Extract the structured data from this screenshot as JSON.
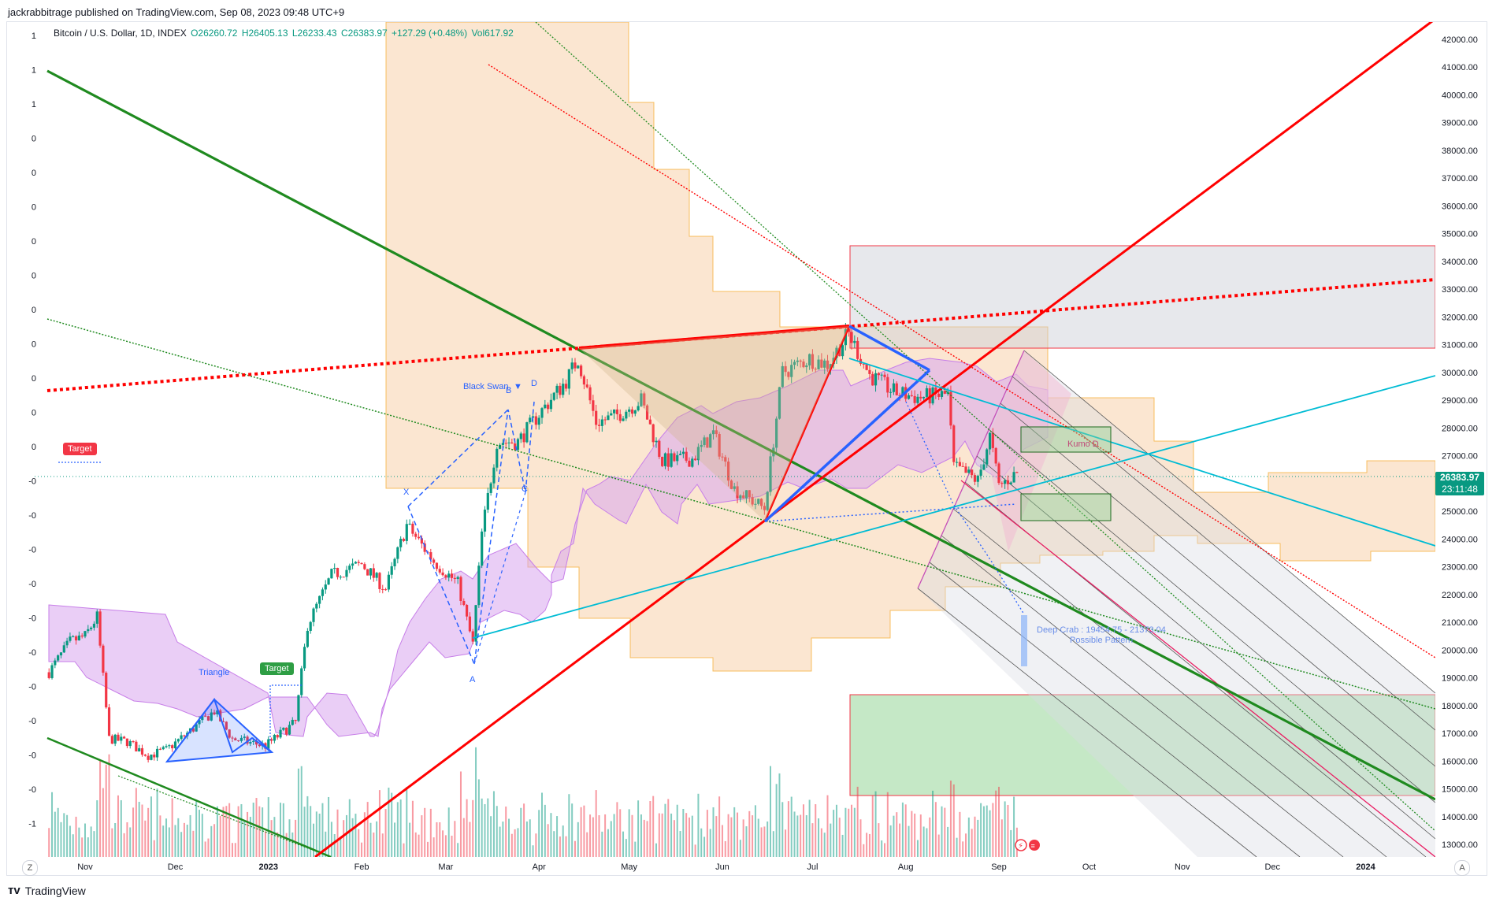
{
  "header": {
    "published": "jackrabbitrage published on TradingView.com, Sep 08, 2023 09:48 UTC+9"
  },
  "legend": {
    "symbol": "Bitcoin / U.S. Dollar, 1D, INDEX",
    "open": "O26260.72",
    "high": "H26405.13",
    "low": "L26233.43",
    "close": "C26383.97",
    "change": "+127.29 (+0.48%)",
    "volume": "Vol617.92"
  },
  "price_tag": {
    "price": "26383.97",
    "countdown": "23:11:48"
  },
  "footer": {
    "brand": "TradingView"
  },
  "buttons": {
    "z": "Z",
    "a": "A"
  },
  "annotations": {
    "target_left": "Target",
    "target_bottom": "Target",
    "triangle": "Triangle",
    "black_swan": "Black Swan",
    "deep_crab": "Deep Crab : 19454.75 - 21373.04",
    "possible_pattern": "Possible Pattern",
    "kumo": "Kumo D",
    "pt_x": "X",
    "pt_a": "A",
    "pt_b": "B",
    "pt_c": "C",
    "pt_d": "D"
  },
  "left_scale": [
    "1",
    "1",
    "1",
    "0",
    "0",
    "0",
    "0",
    "0",
    "0",
    "0",
    "0",
    "0",
    "0",
    "-0",
    "-0",
    "-0",
    "-0",
    "-0",
    "-0",
    "-0",
    "-0",
    "-0",
    "-0",
    "-1"
  ],
  "colors": {
    "up": "#089981",
    "down": "#f23645",
    "cloud_orange": "#f7c89a",
    "cloud_purple": "#d9a6ee",
    "red_line": "#ff0000",
    "green_line": "#1f8a1f",
    "blue_line": "#2962ff",
    "cyan_line": "#00bcd4"
  },
  "chart_data": {
    "type": "candlestick",
    "title": "Bitcoin / U.S. Dollar, 1D, INDEX",
    "x_ticks": [
      "Nov",
      "Dec",
      "2023",
      "Feb",
      "Mar",
      "Apr",
      "May",
      "Jun",
      "Jul",
      "Aug",
      "Sep",
      "Oct",
      "Nov",
      "Dec",
      "2024"
    ],
    "y_ticks": [
      42000,
      41000,
      40000,
      39000,
      38000,
      37000,
      36000,
      35000,
      34000,
      33000,
      32000,
      31000,
      30000,
      29000,
      28000,
      27000,
      26000,
      25000,
      24000,
      23000,
      22000,
      21000,
      20000,
      19000,
      18000,
      17000,
      16000,
      15000,
      14000,
      13000
    ],
    "ylim": [
      12600,
      42800
    ],
    "last_price": 26383.97,
    "approx_closes": [
      [
        "2022-10-20",
        19200
      ],
      [
        "2022-10-27",
        20300
      ],
      [
        "2022-11-01",
        20500
      ],
      [
        "2022-11-05",
        21200
      ],
      [
        "2022-11-09",
        16800
      ],
      [
        "2022-11-15",
        16700
      ],
      [
        "2022-11-22",
        16200
      ],
      [
        "2022-11-28",
        16400
      ],
      [
        "2022-12-05",
        17000
      ],
      [
        "2022-12-14",
        17800
      ],
      [
        "2022-12-20",
        16800
      ],
      [
        "2022-12-31",
        16550
      ],
      [
        "2023-01-10",
        17400
      ],
      [
        "2023-01-14",
        20900
      ],
      [
        "2023-01-22",
        22700
      ],
      [
        "2023-02-01",
        23100
      ],
      [
        "2023-02-09",
        22200
      ],
      [
        "2023-02-16",
        24500
      ],
      [
        "2023-02-25",
        23200
      ],
      [
        "2023-03-05",
        22400
      ],
      [
        "2023-03-10",
        20200
      ],
      [
        "2023-03-13",
        24200
      ],
      [
        "2023-03-18",
        27500
      ],
      [
        "2023-03-25",
        27500
      ],
      [
        "2023-04-01",
        28500
      ],
      [
        "2023-04-10",
        29700
      ],
      [
        "2023-04-14",
        30500
      ],
      [
        "2023-04-20",
        28200
      ],
      [
        "2023-04-26",
        28400
      ],
      [
        "2023-05-05",
        29000
      ],
      [
        "2023-05-12",
        26800
      ],
      [
        "2023-05-22",
        26900
      ],
      [
        "2023-05-29",
        27800
      ],
      [
        "2023-06-05",
        25800
      ],
      [
        "2023-06-15",
        25100
      ],
      [
        "2023-06-21",
        30000
      ],
      [
        "2023-06-30",
        30500
      ],
      [
        "2023-07-06",
        30300
      ],
      [
        "2023-07-13",
        31400
      ],
      [
        "2023-07-20",
        29900
      ],
      [
        "2023-07-28",
        29300
      ],
      [
        "2023-08-05",
        29100
      ],
      [
        "2023-08-15",
        29200
      ],
      [
        "2023-08-17",
        26600
      ],
      [
        "2023-08-25",
        26100
      ],
      [
        "2023-08-29",
        27700
      ],
      [
        "2023-09-01",
        25900
      ],
      [
        "2023-09-07",
        26383.97
      ]
    ],
    "zones": [
      {
        "name": "resistance",
        "y": [
          31000,
          34800
        ]
      },
      {
        "name": "support",
        "y": [
          14800,
          18400
        ]
      }
    ]
  }
}
